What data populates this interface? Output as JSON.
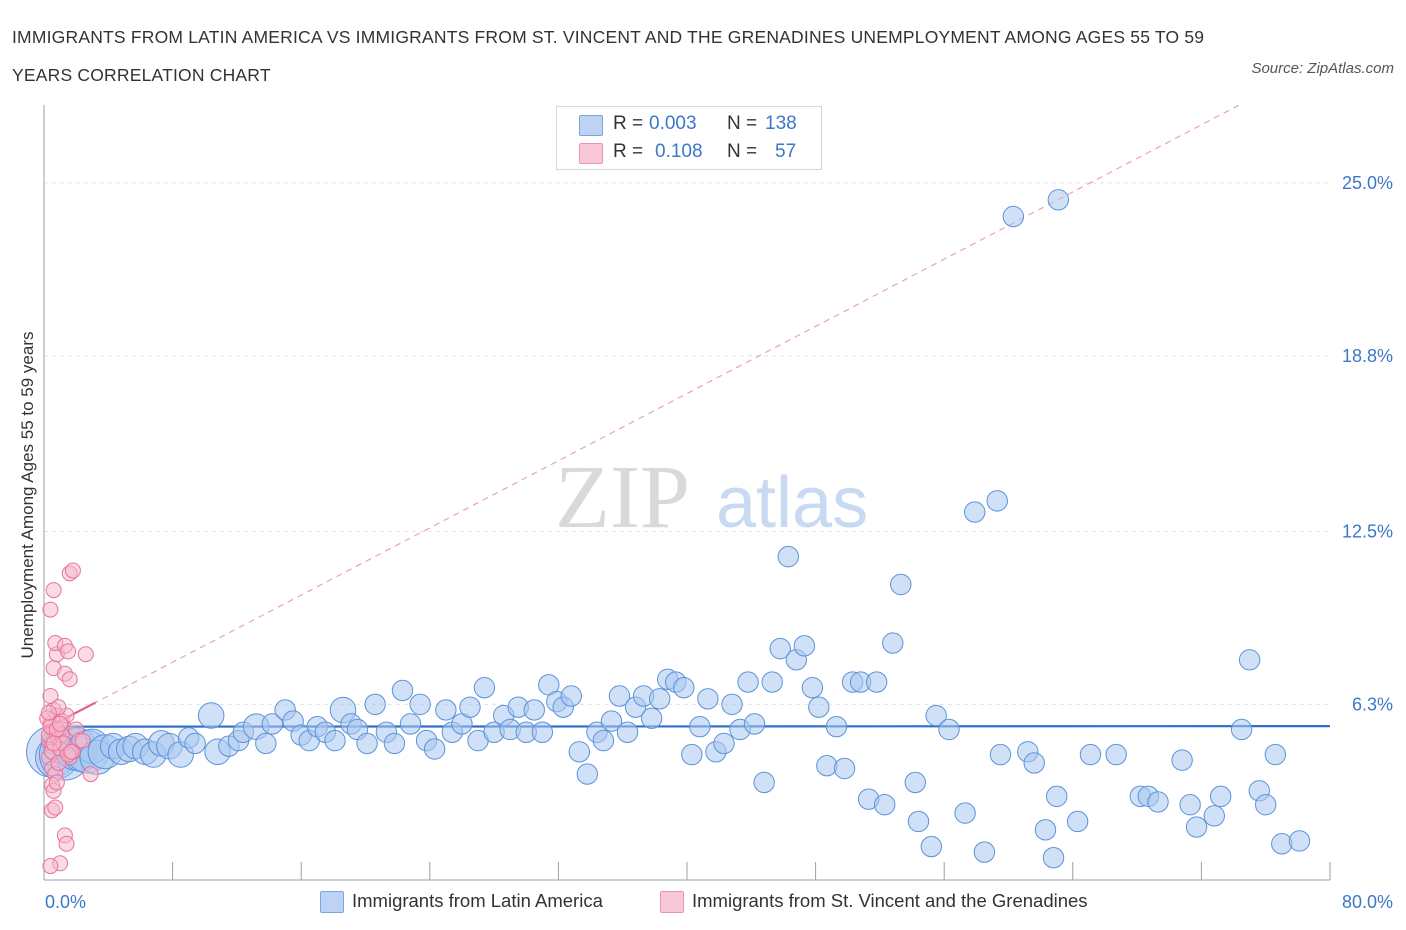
{
  "title": "IMMIGRANTS FROM LATIN AMERICA VS IMMIGRANTS FROM ST. VINCENT AND THE GRENADINES UNEMPLOYMENT AMONG AGES 55 TO 59 YEARS CORRELATION CHART",
  "source": "Source: ZipAtlas.com",
  "watermark": {
    "zip": "ZIP",
    "atlas": "atlas"
  },
  "colors": {
    "blue": "#5b93d9",
    "blue_fill": "#a9c8f0",
    "pink": "#e8739a",
    "pink_fill": "#f5b8cb",
    "axis_text": "#3b78c9",
    "grid": "#dde3ec"
  },
  "legend": {
    "rows": [
      {
        "r_label": "R =",
        "r_value": "0.003",
        "n_label": "N =",
        "n_value": "138"
      },
      {
        "r_label": "R =",
        "r_value": "0.108",
        "n_label": "N =",
        "n_value": "57"
      }
    ]
  },
  "bottom_legend": [
    "Immigrants from Latin America",
    "Immigrants from St. Vincent and the Grenadines"
  ],
  "chart_data": {
    "type": "scatter",
    "title": "IMMIGRANTS FROM LATIN AMERICA VS IMMIGRANTS FROM ST. VINCENT AND THE GRENADINES UNEMPLOYMENT AMONG AGES 55 TO 59 YEARS CORRELATION CHART",
    "xlabel": "",
    "ylabel": "Unemployment Among Ages 55 to 59 years",
    "xlim": [
      0,
      80
    ],
    "ylim": [
      0,
      27.8
    ],
    "x_tick_labels": [
      "0.0%",
      "80.0%"
    ],
    "y_ticks": [
      6.3,
      12.5,
      18.8,
      25.0
    ],
    "y_tick_labels": [
      "6.3%",
      "12.5%",
      "18.8%",
      "25.0%"
    ],
    "grid": true,
    "legend_position": "top-center",
    "series": [
      {
        "name": "Immigrants from Latin America",
        "R": 0.003,
        "N": 138,
        "trend": {
          "x": [
            0,
            80
          ],
          "y": [
            5.5,
            5.52
          ],
          "style": "solid"
        },
        "points": [
          {
            "x": 0.5,
            "y": 4.6,
            "s": 3
          },
          {
            "x": 0.8,
            "y": 4.4,
            "s": 2.5
          },
          {
            "x": 1.0,
            "y": 4.8,
            "s": 2
          },
          {
            "x": 1.3,
            "y": 4.5,
            "s": 3
          },
          {
            "x": 1.6,
            "y": 4.9,
            "s": 2
          },
          {
            "x": 2.0,
            "y": 4.7,
            "s": 2.5
          },
          {
            "x": 2.3,
            "y": 4.5,
            "s": 2
          },
          {
            "x": 2.7,
            "y": 4.6,
            "s": 2.5
          },
          {
            "x": 3.0,
            "y": 4.8,
            "s": 2
          },
          {
            "x": 3.3,
            "y": 4.4,
            "s": 2
          },
          {
            "x": 3.8,
            "y": 4.6,
            "s": 2
          },
          {
            "x": 4.3,
            "y": 4.8,
            "s": 1.5
          },
          {
            "x": 4.8,
            "y": 4.6,
            "s": 1.5
          },
          {
            "x": 5.3,
            "y": 4.7,
            "s": 1.5
          },
          {
            "x": 5.7,
            "y": 4.8,
            "s": 1.5
          },
          {
            "x": 6.3,
            "y": 4.6,
            "s": 1.5
          },
          {
            "x": 6.8,
            "y": 4.5,
            "s": 1.5
          },
          {
            "x": 7.3,
            "y": 4.9,
            "s": 1.5
          },
          {
            "x": 7.8,
            "y": 4.8,
            "s": 1.5
          },
          {
            "x": 8.5,
            "y": 4.5,
            "s": 1.5
          },
          {
            "x": 9.0,
            "y": 5.1,
            "s": 1.2
          },
          {
            "x": 9.4,
            "y": 4.9,
            "s": 1.2
          },
          {
            "x": 10.4,
            "y": 5.9,
            "s": 1.5
          },
          {
            "x": 10.8,
            "y": 4.6,
            "s": 1.5
          },
          {
            "x": 11.5,
            "y": 4.8,
            "s": 1.2
          },
          {
            "x": 12.1,
            "y": 5.0,
            "s": 1.2
          },
          {
            "x": 12.4,
            "y": 5.3,
            "s": 1.2
          },
          {
            "x": 13.2,
            "y": 5.5,
            "s": 1.5
          },
          {
            "x": 13.8,
            "y": 4.9,
            "s": 1.2
          },
          {
            "x": 14.2,
            "y": 5.6,
            "s": 1.2
          },
          {
            "x": 15.0,
            "y": 6.1,
            "s": 1.2
          },
          {
            "x": 15.5,
            "y": 5.7,
            "s": 1.2
          },
          {
            "x": 16.0,
            "y": 5.2,
            "s": 1.2
          },
          {
            "x": 16.5,
            "y": 5.0,
            "s": 1.2
          },
          {
            "x": 17.0,
            "y": 5.5,
            "s": 1.2
          },
          {
            "x": 17.5,
            "y": 5.3,
            "s": 1.2
          },
          {
            "x": 18.1,
            "y": 5.0,
            "s": 1.2
          },
          {
            "x": 18.6,
            "y": 6.1,
            "s": 1.5
          },
          {
            "x": 19.1,
            "y": 5.6,
            "s": 1.2
          },
          {
            "x": 19.5,
            "y": 5.4,
            "s": 1.2
          },
          {
            "x": 20.1,
            "y": 4.9,
            "s": 1.2
          },
          {
            "x": 20.6,
            "y": 6.3,
            "s": 1.2
          },
          {
            "x": 21.3,
            "y": 5.3,
            "s": 1.2
          },
          {
            "x": 21.8,
            "y": 4.9,
            "s": 1.2
          },
          {
            "x": 22.3,
            "y": 6.8,
            "s": 1.2
          },
          {
            "x": 22.8,
            "y": 5.6,
            "s": 1.2
          },
          {
            "x": 23.4,
            "y": 6.3,
            "s": 1.2
          },
          {
            "x": 23.8,
            "y": 5.0,
            "s": 1.2
          },
          {
            "x": 24.3,
            "y": 4.7,
            "s": 1.2
          },
          {
            "x": 25.0,
            "y": 6.1,
            "s": 1.2
          },
          {
            "x": 25.4,
            "y": 5.3,
            "s": 1.2
          },
          {
            "x": 26.0,
            "y": 5.6,
            "s": 1.2
          },
          {
            "x": 26.5,
            "y": 6.2,
            "s": 1.2
          },
          {
            "x": 27.0,
            "y": 5.0,
            "s": 1.2
          },
          {
            "x": 27.4,
            "y": 6.9,
            "s": 1.2
          },
          {
            "x": 28.0,
            "y": 5.3,
            "s": 1.2
          },
          {
            "x": 28.6,
            "y": 5.9,
            "s": 1.2
          },
          {
            "x": 29.0,
            "y": 5.4,
            "s": 1.2
          },
          {
            "x": 29.5,
            "y": 6.2,
            "s": 1.2
          },
          {
            "x": 30.0,
            "y": 5.3,
            "s": 1.2
          },
          {
            "x": 30.5,
            "y": 6.1,
            "s": 1.2
          },
          {
            "x": 31.0,
            "y": 5.3,
            "s": 1.2
          },
          {
            "x": 31.4,
            "y": 7.0,
            "s": 1.2
          },
          {
            "x": 31.9,
            "y": 6.4,
            "s": 1.2
          },
          {
            "x": 32.3,
            "y": 6.2,
            "s": 1.2
          },
          {
            "x": 32.8,
            "y": 6.6,
            "s": 1.2
          },
          {
            "x": 33.3,
            "y": 4.6,
            "s": 1.2
          },
          {
            "x": 33.8,
            "y": 3.8,
            "s": 1.2
          },
          {
            "x": 34.4,
            "y": 5.3,
            "s": 1.2
          },
          {
            "x": 34.8,
            "y": 5.0,
            "s": 1.2
          },
          {
            "x": 35.3,
            "y": 5.7,
            "s": 1.2
          },
          {
            "x": 35.8,
            "y": 6.6,
            "s": 1.2
          },
          {
            "x": 36.3,
            "y": 5.3,
            "s": 1.2
          },
          {
            "x": 36.8,
            "y": 6.2,
            "s": 1.2
          },
          {
            "x": 37.3,
            "y": 6.6,
            "s": 1.2
          },
          {
            "x": 37.8,
            "y": 5.8,
            "s": 1.2
          },
          {
            "x": 38.3,
            "y": 6.5,
            "s": 1.2
          },
          {
            "x": 38.8,
            "y": 7.2,
            "s": 1.2
          },
          {
            "x": 39.3,
            "y": 7.1,
            "s": 1.2
          },
          {
            "x": 39.8,
            "y": 6.9,
            "s": 1.2
          },
          {
            "x": 40.3,
            "y": 4.5,
            "s": 1.2
          },
          {
            "x": 40.8,
            "y": 5.5,
            "s": 1.2
          },
          {
            "x": 41.3,
            "y": 6.5,
            "s": 1.2
          },
          {
            "x": 41.8,
            "y": 4.6,
            "s": 1.2
          },
          {
            "x": 42.3,
            "y": 4.9,
            "s": 1.2
          },
          {
            "x": 42.8,
            "y": 6.3,
            "s": 1.2
          },
          {
            "x": 43.3,
            "y": 5.4,
            "s": 1.2
          },
          {
            "x": 43.8,
            "y": 7.1,
            "s": 1.2
          },
          {
            "x": 44.2,
            "y": 5.6,
            "s": 1.2
          },
          {
            "x": 44.8,
            "y": 3.5,
            "s": 1.2
          },
          {
            "x": 45.3,
            "y": 7.1,
            "s": 1.2
          },
          {
            "x": 45.8,
            "y": 8.3,
            "s": 1.2
          },
          {
            "x": 46.3,
            "y": 11.6,
            "s": 1.2
          },
          {
            "x": 46.8,
            "y": 7.9,
            "s": 1.2
          },
          {
            "x": 47.3,
            "y": 8.4,
            "s": 1.2
          },
          {
            "x": 47.8,
            "y": 6.9,
            "s": 1.2
          },
          {
            "x": 48.2,
            "y": 6.2,
            "s": 1.2
          },
          {
            "x": 48.7,
            "y": 4.1,
            "s": 1.2
          },
          {
            "x": 49.3,
            "y": 5.5,
            "s": 1.2
          },
          {
            "x": 49.8,
            "y": 4.0,
            "s": 1.2
          },
          {
            "x": 50.3,
            "y": 7.1,
            "s": 1.2
          },
          {
            "x": 50.8,
            "y": 7.1,
            "s": 1.2
          },
          {
            "x": 51.3,
            "y": 2.9,
            "s": 1.2
          },
          {
            "x": 51.8,
            "y": 7.1,
            "s": 1.2
          },
          {
            "x": 52.3,
            "y": 2.7,
            "s": 1.2
          },
          {
            "x": 52.8,
            "y": 8.5,
            "s": 1.2
          },
          {
            "x": 53.3,
            "y": 10.6,
            "s": 1.2
          },
          {
            "x": 54.2,
            "y": 3.5,
            "s": 1.2
          },
          {
            "x": 54.4,
            "y": 2.1,
            "s": 1.2
          },
          {
            "x": 55.2,
            "y": 1.2,
            "s": 1.2
          },
          {
            "x": 55.5,
            "y": 5.9,
            "s": 1.2
          },
          {
            "x": 56.3,
            "y": 5.4,
            "s": 1.2
          },
          {
            "x": 57.3,
            "y": 2.4,
            "s": 1.2
          },
          {
            "x": 57.9,
            "y": 13.2,
            "s": 1.2
          },
          {
            "x": 58.5,
            "y": 1.0,
            "s": 1.2
          },
          {
            "x": 59.3,
            "y": 13.6,
            "s": 1.2
          },
          {
            "x": 59.5,
            "y": 4.5,
            "s": 1.2
          },
          {
            "x": 60.3,
            "y": 23.8,
            "s": 1.2
          },
          {
            "x": 61.2,
            "y": 4.6,
            "s": 1.2
          },
          {
            "x": 61.6,
            "y": 4.2,
            "s": 1.2
          },
          {
            "x": 62.3,
            "y": 1.8,
            "s": 1.2
          },
          {
            "x": 63.0,
            "y": 3.0,
            "s": 1.2
          },
          {
            "x": 62.8,
            "y": 0.8,
            "s": 1.2
          },
          {
            "x": 64.3,
            "y": 2.1,
            "s": 1.2
          },
          {
            "x": 63.1,
            "y": 24.4,
            "s": 1.2
          },
          {
            "x": 65.1,
            "y": 4.5,
            "s": 1.2
          },
          {
            "x": 66.7,
            "y": 4.5,
            "s": 1.2
          },
          {
            "x": 68.2,
            "y": 3.0,
            "s": 1.2
          },
          {
            "x": 68.7,
            "y": 3.0,
            "s": 1.2
          },
          {
            "x": 69.3,
            "y": 2.8,
            "s": 1.2
          },
          {
            "x": 70.8,
            "y": 4.3,
            "s": 1.2
          },
          {
            "x": 71.3,
            "y": 2.7,
            "s": 1.2
          },
          {
            "x": 71.7,
            "y": 1.9,
            "s": 1.2
          },
          {
            "x": 72.8,
            "y": 2.3,
            "s": 1.2
          },
          {
            "x": 73.2,
            "y": 3.0,
            "s": 1.2
          },
          {
            "x": 74.5,
            "y": 5.4,
            "s": 1.2
          },
          {
            "x": 75.0,
            "y": 7.9,
            "s": 1.2
          },
          {
            "x": 75.6,
            "y": 3.2,
            "s": 1.2
          },
          {
            "x": 76.0,
            "y": 2.7,
            "s": 1.2
          },
          {
            "x": 76.6,
            "y": 4.5,
            "s": 1.2
          },
          {
            "x": 77.0,
            "y": 1.3,
            "s": 1.2
          },
          {
            "x": 78.1,
            "y": 1.4,
            "s": 1.2
          }
        ]
      },
      {
        "name": "Immigrants from St. Vincent and the Grenadines",
        "R": 0.108,
        "N": 57,
        "trend": {
          "x": [
            0,
            80
          ],
          "y": [
            5.4,
            29.5
          ],
          "style": "dashed",
          "solid_until_x": 3.2
        },
        "points": [
          {
            "x": 0.3,
            "y": 5.0
          },
          {
            "x": 0.4,
            "y": 5.6
          },
          {
            "x": 0.5,
            "y": 4.8
          },
          {
            "x": 0.6,
            "y": 6.1
          },
          {
            "x": 0.7,
            "y": 5.3
          },
          {
            "x": 0.8,
            "y": 5.9
          },
          {
            "x": 0.3,
            "y": 4.4
          },
          {
            "x": 0.5,
            "y": 4.6
          },
          {
            "x": 0.6,
            "y": 5.4
          },
          {
            "x": 0.9,
            "y": 5.1
          },
          {
            "x": 1.0,
            "y": 4.7
          },
          {
            "x": 1.1,
            "y": 5.7
          },
          {
            "x": 1.2,
            "y": 5.5
          },
          {
            "x": 0.4,
            "y": 6.6
          },
          {
            "x": 0.6,
            "y": 7.6
          },
          {
            "x": 0.8,
            "y": 8.1
          },
          {
            "x": 0.7,
            "y": 8.5
          },
          {
            "x": 0.4,
            "y": 9.7
          },
          {
            "x": 0.6,
            "y": 10.4
          },
          {
            "x": 1.6,
            "y": 11.0
          },
          {
            "x": 1.8,
            "y": 11.1
          },
          {
            "x": 1.3,
            "y": 8.4
          },
          {
            "x": 1.5,
            "y": 8.2
          },
          {
            "x": 2.6,
            "y": 8.1
          },
          {
            "x": 1.3,
            "y": 7.4
          },
          {
            "x": 1.6,
            "y": 7.2
          },
          {
            "x": 0.5,
            "y": 4.0
          },
          {
            "x": 0.7,
            "y": 3.8
          },
          {
            "x": 0.5,
            "y": 3.4
          },
          {
            "x": 0.6,
            "y": 3.2
          },
          {
            "x": 0.8,
            "y": 3.5
          },
          {
            "x": 0.5,
            "y": 2.5
          },
          {
            "x": 0.7,
            "y": 2.6
          },
          {
            "x": 1.3,
            "y": 1.6
          },
          {
            "x": 1.4,
            "y": 1.3
          },
          {
            "x": 1.0,
            "y": 0.6
          },
          {
            "x": 0.4,
            "y": 0.5
          },
          {
            "x": 1.6,
            "y": 4.4
          },
          {
            "x": 1.8,
            "y": 4.6
          },
          {
            "x": 1.4,
            "y": 5.9
          },
          {
            "x": 2.0,
            "y": 5.4
          },
          {
            "x": 2.2,
            "y": 5.0
          },
          {
            "x": 2.9,
            "y": 3.8
          },
          {
            "x": 0.9,
            "y": 6.2
          },
          {
            "x": 1.1,
            "y": 5.2
          },
          {
            "x": 0.2,
            "y": 5.8
          },
          {
            "x": 0.3,
            "y": 5.2
          },
          {
            "x": 0.9,
            "y": 4.2
          },
          {
            "x": 1.2,
            "y": 4.9
          },
          {
            "x": 1.5,
            "y": 4.5
          },
          {
            "x": 0.4,
            "y": 5.5
          },
          {
            "x": 0.8,
            "y": 5.4
          },
          {
            "x": 0.6,
            "y": 4.9
          },
          {
            "x": 1.0,
            "y": 5.6
          },
          {
            "x": 0.3,
            "y": 6.0
          },
          {
            "x": 1.7,
            "y": 4.6
          },
          {
            "x": 2.4,
            "y": 5.0
          }
        ]
      }
    ]
  }
}
